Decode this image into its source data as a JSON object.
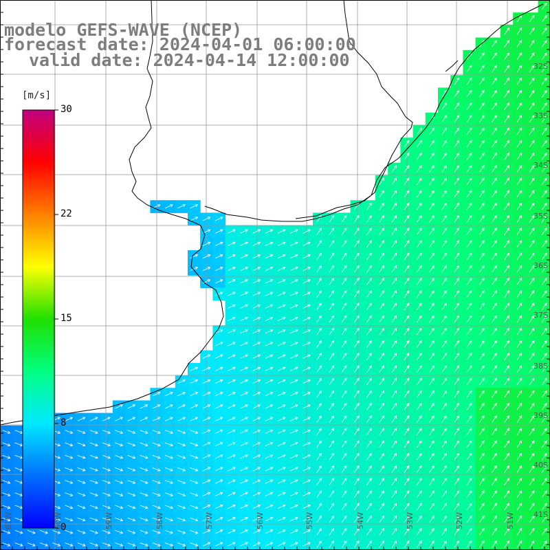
{
  "title": {
    "model": "modelo GEFS-WAVE (NCEP)",
    "forecast": "forecast date: 2024-04-01 06:00:00",
    "valid": "valid date: 2024-04-14 12:00:00"
  },
  "colorbar": {
    "unit": "[m/s]",
    "ticks": [
      {
        "value": 30,
        "label": "30"
      },
      {
        "value": 22,
        "label": "22"
      },
      {
        "value": 15,
        "label": "15"
      },
      {
        "value": 8,
        "label": "8"
      },
      {
        "value": 0,
        "label": "0"
      }
    ],
    "range": [
      0,
      30
    ],
    "colors": [
      "#0000ff",
      "#0070ff",
      "#00e8ff",
      "#00ff80",
      "#20e000",
      "#ffff00",
      "#ff8000",
      "#ff0000",
      "#c00080"
    ]
  },
  "map": {
    "lat_labels": [
      "32S",
      "33S",
      "34S",
      "35S",
      "36S",
      "37S",
      "38S",
      "39S",
      "40S",
      "41S"
    ],
    "lon_labels": [
      "61W",
      "60W",
      "59W",
      "58W",
      "57W",
      "56W",
      "55W",
      "54W",
      "53W",
      "52W",
      "51W"
    ],
    "colors": {
      "land": "#ffffff",
      "grid": "#999999",
      "coast": "#000000",
      "arrow": "#ffffff"
    }
  }
}
